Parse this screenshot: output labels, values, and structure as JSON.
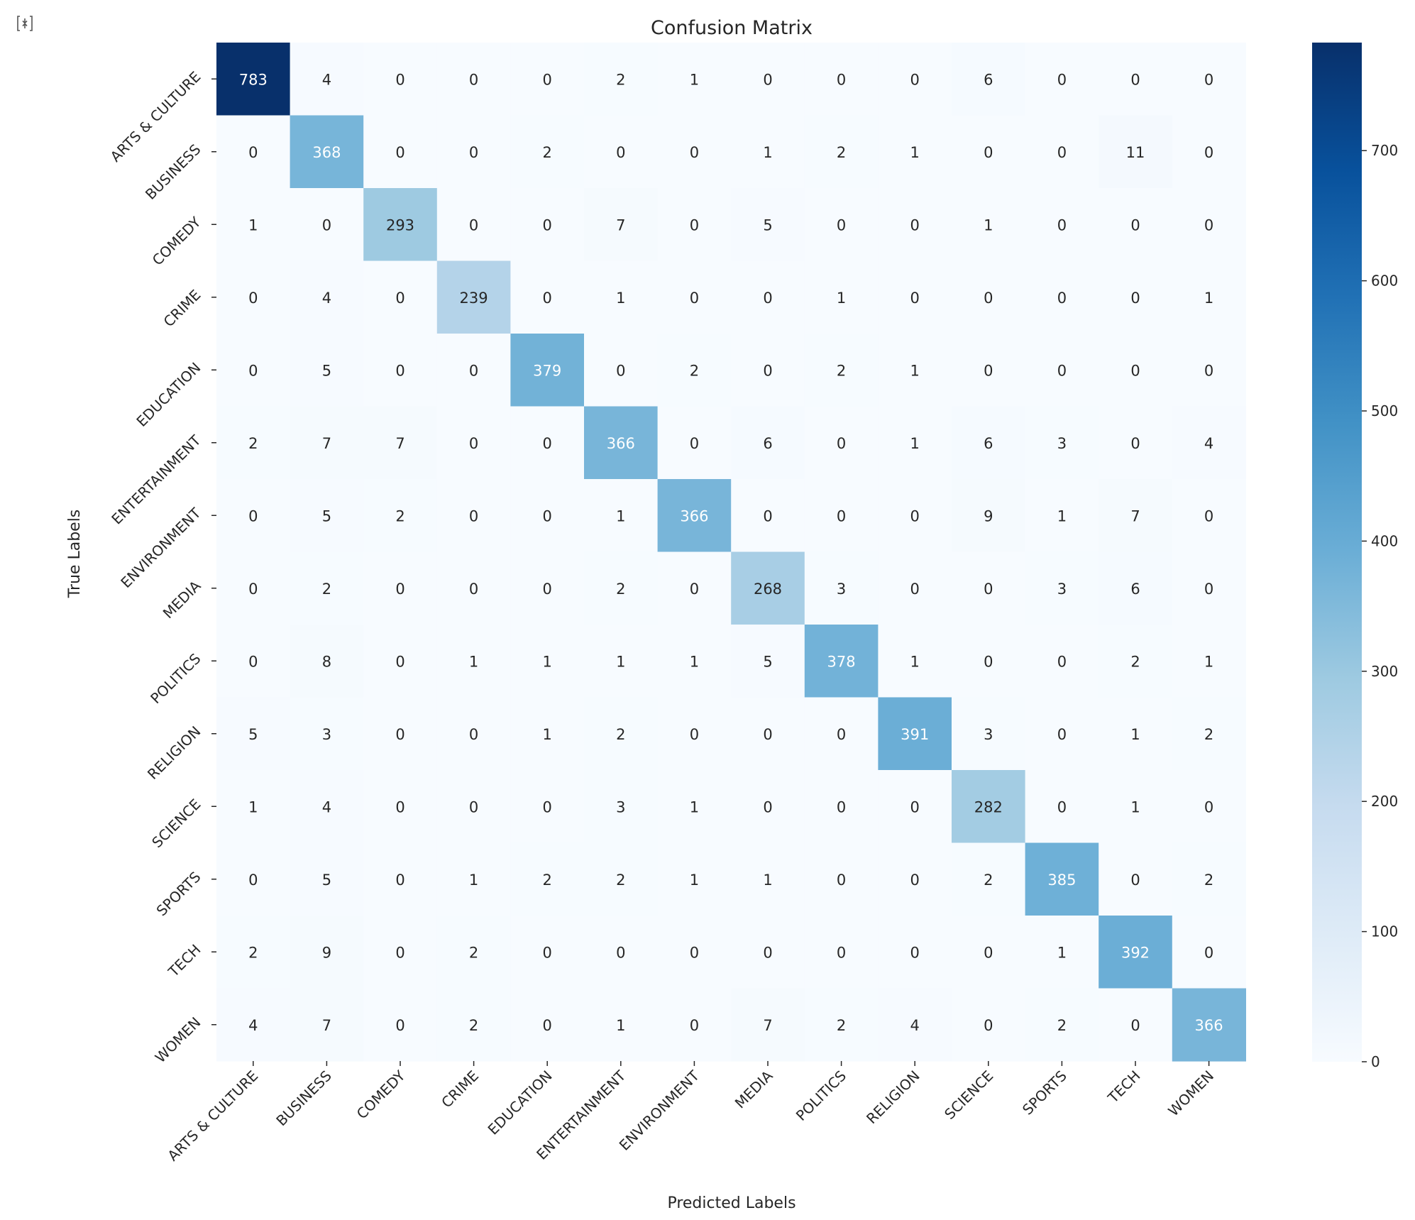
{
  "output_icon": "output-expand-icon",
  "chart_data": {
    "type": "heatmap",
    "title": "Confusion Matrix",
    "xlabel": "Predicted Labels",
    "ylabel": "True Labels",
    "colormap": "Blues",
    "color_low": "#f7fbff",
    "color_high": "#08306b",
    "vmin": 0,
    "vmax": 783,
    "colorbar_ticks": [
      0,
      100,
      200,
      300,
      400,
      500,
      600,
      700
    ],
    "labels": [
      "ARTS & CULTURE",
      "BUSINESS",
      "COMEDY",
      "CRIME",
      "EDUCATION",
      "ENTERTAINMENT",
      "ENVIRONMENT",
      "MEDIA",
      "POLITICS",
      "RELIGION",
      "SCIENCE",
      "SPORTS",
      "TECH",
      "WOMEN"
    ],
    "matrix": [
      [
        783,
        4,
        0,
        0,
        0,
        2,
        1,
        0,
        0,
        0,
        6,
        0,
        0,
        0
      ],
      [
        0,
        368,
        0,
        0,
        2,
        0,
        0,
        1,
        2,
        1,
        0,
        0,
        11,
        0
      ],
      [
        1,
        0,
        293,
        0,
        0,
        7,
        0,
        5,
        0,
        0,
        1,
        0,
        0,
        0
      ],
      [
        0,
        4,
        0,
        239,
        0,
        1,
        0,
        0,
        1,
        0,
        0,
        0,
        0,
        1
      ],
      [
        0,
        5,
        0,
        0,
        379,
        0,
        2,
        0,
        2,
        1,
        0,
        0,
        0,
        0
      ],
      [
        2,
        7,
        7,
        0,
        0,
        366,
        0,
        6,
        0,
        1,
        6,
        3,
        0,
        4
      ],
      [
        0,
        5,
        2,
        0,
        0,
        1,
        366,
        0,
        0,
        0,
        9,
        1,
        7,
        0
      ],
      [
        0,
        2,
        0,
        0,
        0,
        2,
        0,
        268,
        3,
        0,
        0,
        3,
        6,
        0
      ],
      [
        0,
        8,
        0,
        1,
        1,
        1,
        1,
        5,
        378,
        1,
        0,
        0,
        2,
        1
      ],
      [
        5,
        3,
        0,
        0,
        1,
        2,
        0,
        0,
        0,
        391,
        3,
        0,
        1,
        2
      ],
      [
        1,
        4,
        0,
        0,
        0,
        3,
        1,
        0,
        0,
        0,
        282,
        0,
        1,
        0
      ],
      [
        0,
        5,
        0,
        1,
        2,
        2,
        1,
        1,
        0,
        0,
        2,
        385,
        0,
        2
      ],
      [
        2,
        9,
        0,
        2,
        0,
        0,
        0,
        0,
        0,
        0,
        0,
        1,
        392,
        0
      ],
      [
        4,
        7,
        0,
        2,
        0,
        1,
        0,
        7,
        2,
        4,
        0,
        2,
        0,
        366
      ]
    ]
  }
}
